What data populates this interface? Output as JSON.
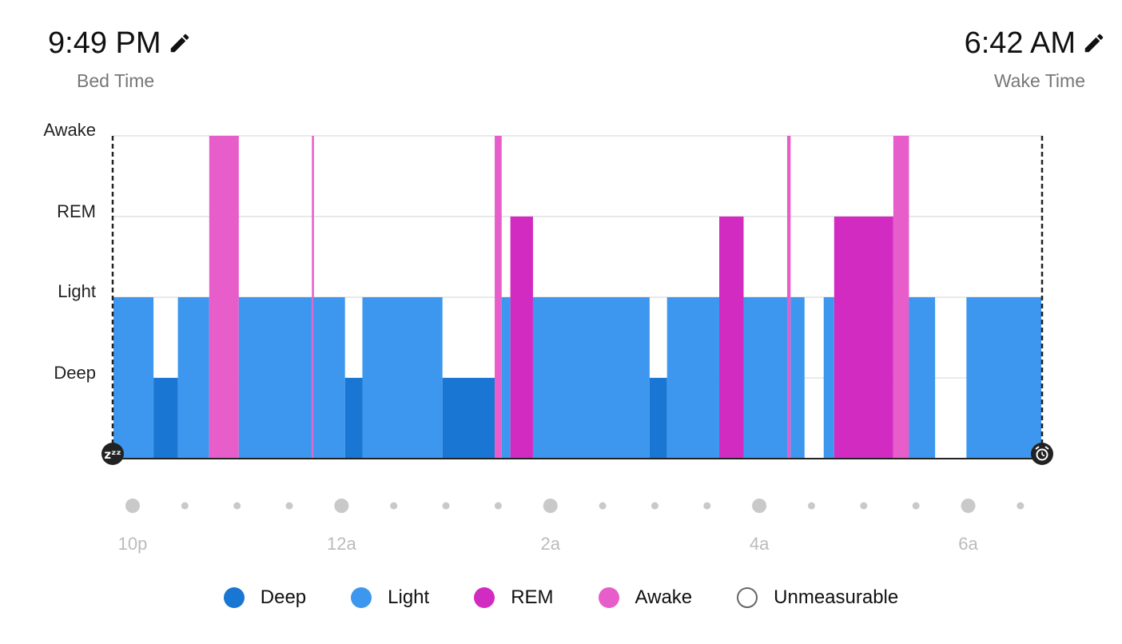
{
  "header": {
    "bed_time": "9:49 PM",
    "bed_label": "Bed Time",
    "wake_time": "6:42 AM",
    "wake_label": "Wake Time",
    "edit_icon": "pencil-icon"
  },
  "colors": {
    "deep": "#1976D2",
    "light": "#3D97EE",
    "rem": "#D22BC2",
    "awake": "#E75ECB",
    "unmeasurable": "#FFFFFF",
    "axis_label": "#222222",
    "time_label": "#BBBBBB",
    "dot": "#C9C9C9"
  },
  "chart_data": {
    "type": "bar",
    "stage_labels": [
      "Deep",
      "Light",
      "REM",
      "Awake"
    ],
    "x_range": [
      "21:49",
      "06:42"
    ],
    "x_ticks": [
      "10p",
      "12a",
      "2a",
      "4a",
      "6a"
    ],
    "start_icon": "sleep-zzz-icon",
    "end_icon": "alarm-clock-icon",
    "segments": [
      {
        "stage": "Light",
        "start": "21:49",
        "end": "22:12"
      },
      {
        "stage": "Deep",
        "start": "22:12",
        "end": "22:26"
      },
      {
        "stage": "Light",
        "start": "22:26",
        "end": "22:44"
      },
      {
        "stage": "Awake",
        "start": "22:44",
        "end": "23:01"
      },
      {
        "stage": "Light",
        "start": "23:01",
        "end": "23:43"
      },
      {
        "stage": "Awake",
        "start": "23:43",
        "end": "23:44"
      },
      {
        "stage": "Light",
        "start": "23:44",
        "end": "00:02"
      },
      {
        "stage": "Deep",
        "start": "00:02",
        "end": "00:12"
      },
      {
        "stage": "Light",
        "start": "00:12",
        "end": "00:58"
      },
      {
        "stage": "Deep",
        "start": "00:58",
        "end": "01:28"
      },
      {
        "stage": "Awake",
        "start": "01:28",
        "end": "01:32"
      },
      {
        "stage": "Light",
        "start": "01:32",
        "end": "01:37"
      },
      {
        "stage": "REM",
        "start": "01:37",
        "end": "01:50"
      },
      {
        "stage": "Light",
        "start": "01:50",
        "end": "02:57"
      },
      {
        "stage": "Deep",
        "start": "02:57",
        "end": "03:07"
      },
      {
        "stage": "Light",
        "start": "03:07",
        "end": "03:37"
      },
      {
        "stage": "REM",
        "start": "03:37",
        "end": "03:51"
      },
      {
        "stage": "Light",
        "start": "03:51",
        "end": "04:16"
      },
      {
        "stage": "Awake",
        "start": "04:16",
        "end": "04:18"
      },
      {
        "stage": "Light",
        "start": "04:18",
        "end": "04:26"
      },
      {
        "stage": "Unmeasurable",
        "start": "04:26",
        "end": "04:37"
      },
      {
        "stage": "Light",
        "start": "04:37",
        "end": "04:43"
      },
      {
        "stage": "REM",
        "start": "04:43",
        "end": "05:17"
      },
      {
        "stage": "Awake",
        "start": "05:17",
        "end": "05:26"
      },
      {
        "stage": "Light",
        "start": "05:26",
        "end": "05:41"
      },
      {
        "stage": "Unmeasurable",
        "start": "05:41",
        "end": "05:59"
      },
      {
        "stage": "Light",
        "start": "05:59",
        "end": "06:42"
      }
    ]
  },
  "legend": [
    {
      "key": "deep",
      "label": "Deep"
    },
    {
      "key": "light",
      "label": "Light"
    },
    {
      "key": "rem",
      "label": "REM"
    },
    {
      "key": "awake",
      "label": "Awake"
    },
    {
      "key": "unmeasurable",
      "label": "Unmeasurable"
    }
  ]
}
